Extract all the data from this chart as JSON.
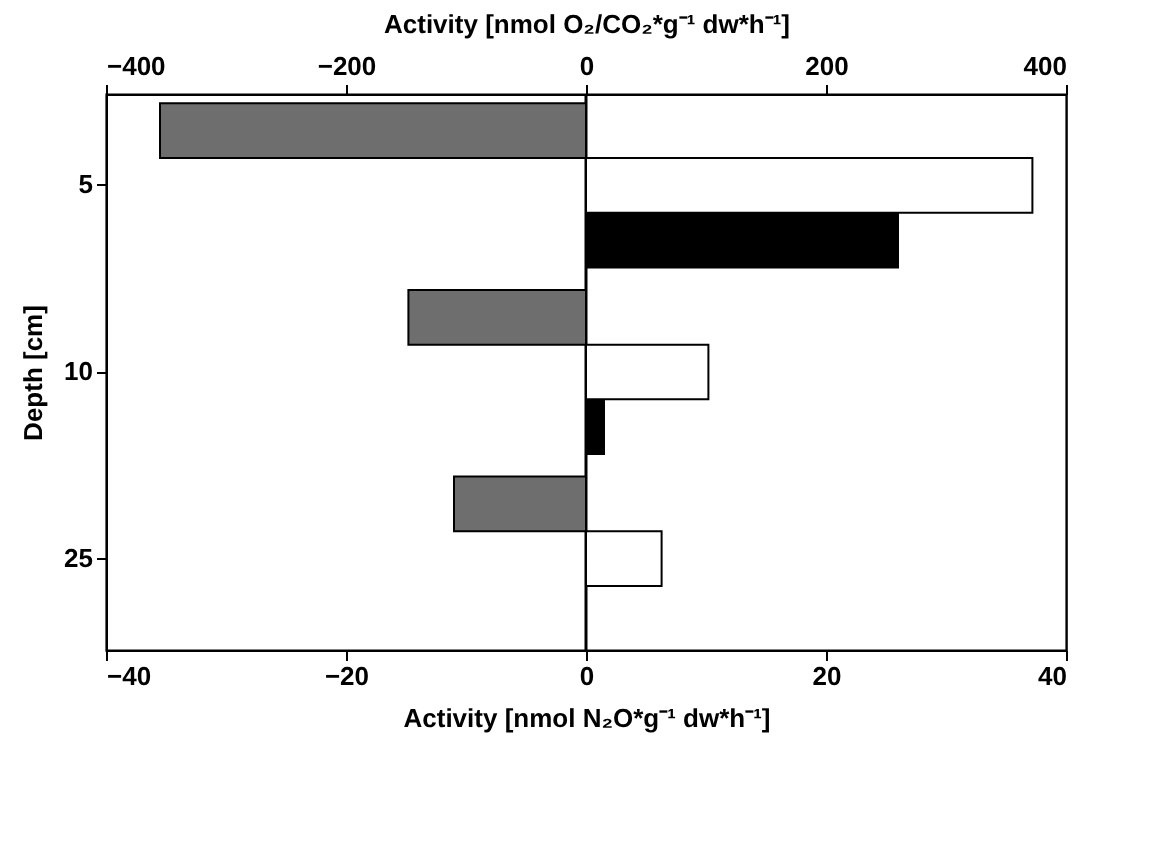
{
  "chart_data": {
    "type": "bar",
    "orientation": "horizontal",
    "xlabel": "Activity [nmol N₂O*g⁻¹ dw*h⁻¹]",
    "x2label": "Activity [nmol O₂/CO₂*g⁻¹ dw*h⁻¹]",
    "ylabel": "Depth [cm]",
    "categories": [
      "5",
      "10",
      "25"
    ],
    "series": [
      {
        "color": "#6e6e6e",
        "axis": "x2",
        "values": [
          -355,
          -148,
          -110
        ]
      },
      {
        "color": "#ffffff",
        "axis": "x2",
        "values": [
          372,
          102,
          63
        ]
      },
      {
        "color": "#000000",
        "values": [
          26,
          1.5,
          null
        ]
      }
    ],
    "xlim": [
      -40,
      40
    ],
    "xticks": [
      -40,
      -20,
      0,
      20,
      40
    ],
    "x2lim": [
      -400,
      400
    ],
    "x2ticks": [
      -400,
      -200,
      0,
      200,
      400
    ],
    "ref_lines": [
      {
        "axis": "x",
        "value": 0
      }
    ],
    "grid": false,
    "legend": false
  }
}
